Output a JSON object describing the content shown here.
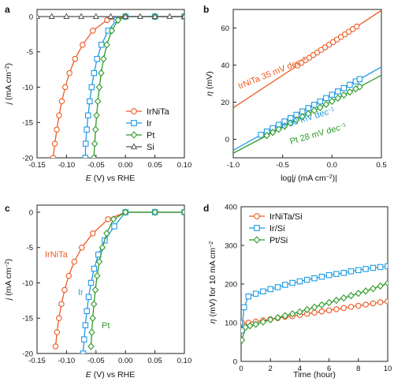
{
  "colors": {
    "IrNiTa": "#ee5a24",
    "Ir": "#1f9be5",
    "Pt": "#2e9a2a",
    "Si": "#444444"
  },
  "chart_data": [
    {
      "panel": "a",
      "type": "line",
      "xlabel": "E (V) vs RHE",
      "ylabel": "j (mA cm−2)",
      "xlim": [
        -0.15,
        0.1
      ],
      "ylim": [
        -20,
        1
      ],
      "xticks": [
        "-0.15",
        "-0.10",
        "-0.05",
        "0.00",
        "0.05",
        "0.10"
      ],
      "yticks": [
        "0",
        "-5",
        "-10",
        "-15",
        "-20"
      ],
      "legend": {
        "placement": "bottom-right",
        "entries": [
          "IrNiTa",
          "Ir",
          "Pt",
          "Si"
        ]
      },
      "series": [
        {
          "name": "IrNiTa",
          "marker": "circle",
          "x": [
            -0.1226,
            -0.1198,
            -0.1165,
            -0.1126,
            -0.108,
            -0.1022,
            -0.095,
            -0.0855,
            -0.0727,
            -0.0552,
            -0.0312,
            0.0,
            0.05,
            0.1
          ],
          "y": [
            -20,
            -18,
            -16,
            -14,
            -12,
            -10,
            -8,
            -6,
            -4,
            -2,
            -0.5,
            0,
            0,
            0
          ]
        },
        {
          "name": "Ir",
          "marker": "square",
          "x": [
            -0.0681,
            -0.0675,
            -0.0656,
            -0.0634,
            -0.0606,
            -0.0574,
            -0.0534,
            -0.0481,
            -0.0407,
            -0.0293,
            -0.0151,
            0.0,
            0.05,
            0.1
          ],
          "y": [
            -20,
            -18,
            -16,
            -14,
            -12,
            -10,
            -8,
            -6,
            -4,
            -2,
            -0.5,
            0,
            0,
            0
          ]
        },
        {
          "name": "Pt",
          "marker": "diamond",
          "x": [
            -0.0536,
            -0.0522,
            -0.0507,
            -0.0489,
            -0.0468,
            -0.0443,
            -0.0412,
            -0.0372,
            -0.0317,
            -0.0232,
            -0.0125,
            0.0,
            0.05,
            0.1
          ],
          "y": [
            -20,
            -18,
            -16,
            -14,
            -12,
            -10,
            -8,
            -6,
            -4,
            -2,
            -0.5,
            0,
            0,
            0
          ]
        },
        {
          "name": "Si",
          "marker": "triangle",
          "x": [
            -0.15,
            -0.125,
            -0.1,
            -0.075,
            -0.05,
            -0.025,
            0.0,
            0.025,
            0.05,
            0.075,
            0.1
          ],
          "y": [
            0,
            0,
            0,
            0,
            0,
            0,
            0,
            0,
            0,
            0,
            0
          ]
        }
      ]
    },
    {
      "panel": "b",
      "type": "scatter",
      "xlabel": "log|j (mA cm−2)|",
      "ylabel": "η (mV)",
      "xlim": [
        -1.0,
        0.5
      ],
      "ylim": [
        -10,
        70
      ],
      "xticks": [
        "-1.0",
        "-0.5",
        "0.0",
        "0.5"
      ],
      "yticks": [
        "0",
        "20",
        "40",
        "60"
      ],
      "series": [
        {
          "name": "IrNiTa",
          "marker": "circle",
          "x": [
            -0.35,
            -0.31,
            -0.27,
            -0.23,
            -0.19,
            -0.15,
            -0.11,
            -0.07,
            -0.03,
            0.01,
            0.05,
            0.09,
            0.13,
            0.17,
            0.21,
            0.25
          ],
          "y": [
            39.8,
            41.2,
            42.6,
            44.0,
            45.4,
            46.8,
            48.2,
            49.6,
            51.0,
            52.4,
            53.8,
            55.2,
            56.6,
            58.0,
            59.4,
            60.8
          ],
          "fit": {
            "slope": 35,
            "intercept": 52.0,
            "xrange": [
              -1.0,
              0.5
            ]
          }
        },
        {
          "name": "Ir",
          "marker": "square",
          "x": [
            -0.72,
            -0.66,
            -0.6,
            -0.54,
            -0.48,
            -0.42,
            -0.36,
            -0.3,
            -0.24,
            -0.18,
            -0.12,
            -0.06,
            0.0,
            0.06,
            0.12,
            0.18,
            0.24,
            0.28
          ],
          "y": [
            2.4,
            4.2,
            6.0,
            7.8,
            9.6,
            11.4,
            13.2,
            15.0,
            16.8,
            18.6,
            20.4,
            22.2,
            24.0,
            25.8,
            27.6,
            29.4,
            31.2,
            32.4
          ],
          "fit": {
            "slope": 30,
            "intercept": 24.0,
            "xrange": [
              -1.0,
              0.5
            ]
          }
        },
        {
          "name": "Pt",
          "marker": "diamond",
          "x": [
            -0.66,
            -0.6,
            -0.54,
            -0.48,
            -0.42,
            -0.36,
            -0.3,
            -0.24,
            -0.18,
            -0.12,
            -0.06,
            0.0,
            0.06,
            0.12,
            0.18,
            0.24,
            0.28
          ],
          "y": [
            2.0,
            3.7,
            5.4,
            7.0,
            8.7,
            10.4,
            12.1,
            13.8,
            15.5,
            17.1,
            18.8,
            20.5,
            22.2,
            23.9,
            25.5,
            27.2,
            28.3
          ],
          "fit": {
            "slope": 28,
            "intercept": 20.5,
            "xrange": [
              -1.0,
              0.5
            ]
          }
        }
      ],
      "annotations": [
        {
          "text": "IrNiTa   35 mV dec−1",
          "series": "IrNiTa"
        },
        {
          "text": "Ir   30 mV dec−1",
          "series": "Ir"
        },
        {
          "text": "Pt   28 mV dec−1",
          "series": "Pt"
        }
      ]
    },
    {
      "panel": "c",
      "type": "line",
      "xlabel": "E (V) vs RHE",
      "ylabel": "j (mA cm−2)",
      "xlim": [
        -0.15,
        0.1
      ],
      "ylim": [
        -20,
        1
      ],
      "xticks": [
        "-0.15",
        "-0.10",
        "-0.05",
        "0.00",
        "0.05",
        "0.10"
      ],
      "yticks": [
        "0",
        "-5",
        "-10",
        "-15",
        "-20"
      ],
      "series": [
        {
          "name": "IrNiTa",
          "marker": "circle",
          "x": [
            -0.1186,
            -0.1161,
            -0.1128,
            -0.1086,
            -0.1032,
            -0.0962,
            -0.0868,
            -0.074,
            -0.0554,
            -0.0295,
            0.0,
            0.05,
            0.1
          ],
          "y": [
            -19,
            -17,
            -15,
            -13,
            -11,
            -9,
            -7,
            -5,
            -3,
            -1,
            0,
            0,
            0
          ]
        },
        {
          "name": "Ir",
          "marker": "square",
          "x": [
            -0.0718,
            -0.0701,
            -0.068,
            -0.0655,
            -0.0624,
            -0.0584,
            -0.0532,
            -0.046,
            -0.0352,
            -0.019,
            0.0,
            0.05,
            0.1
          ],
          "y": [
            -20,
            -18,
            -16,
            -14,
            -12,
            -10,
            -8,
            -6,
            -4,
            -2,
            0,
            0,
            0
          ]
        },
        {
          "name": "Pt",
          "marker": "diamond",
          "x": [
            -0.0584,
            -0.0571,
            -0.0555,
            -0.0535,
            -0.0511,
            -0.0481,
            -0.0443,
            -0.0392,
            -0.0318,
            -0.0204,
            0.0,
            0.05,
            0.1
          ],
          "y": [
            -19,
            -17,
            -15,
            -13,
            -11,
            -9,
            -7,
            -5,
            -3,
            -1,
            0,
            0,
            0
          ]
        }
      ],
      "annotations": [
        {
          "text": "IrNiTa",
          "series": "IrNiTa"
        },
        {
          "text": "Ir",
          "series": "Ir"
        },
        {
          "text": "Pt",
          "series": "Pt"
        }
      ]
    },
    {
      "panel": "d",
      "type": "line",
      "xlabel": "Time (hour)",
      "ylabel": "η (mV) for 10 mA cm−2",
      "xlim": [
        0,
        10
      ],
      "ylim": [
        0,
        400
      ],
      "xticks": [
        "0",
        "2",
        "4",
        "6",
        "8",
        "10"
      ],
      "yticks": [
        "0",
        "100",
        "200",
        "300",
        "400"
      ],
      "legend": {
        "placement": "top-left",
        "entries": [
          "IrNiTa/Si",
          "Ir/Si",
          "Pt/Si"
        ]
      },
      "series": [
        {
          "name": "IrNiTa/Si",
          "marker": "circle",
          "x": [
            0.05,
            0.5,
            1,
            1.5,
            2,
            2.5,
            3,
            3.5,
            4,
            4.5,
            5,
            5.5,
            6,
            6.5,
            7,
            7.5,
            8,
            8.5,
            9,
            9.5,
            10
          ],
          "y": [
            100,
            100,
            103,
            106,
            109,
            112,
            115,
            117,
            120,
            123,
            126,
            129,
            132,
            135,
            138,
            141,
            144,
            147,
            150,
            153,
            155
          ]
        },
        {
          "name": "Ir/Si",
          "marker": "square",
          "x": [
            0.05,
            0.2,
            0.5,
            1,
            1.5,
            2,
            2.5,
            3,
            3.5,
            4,
            4.5,
            5,
            5.5,
            6,
            6.5,
            7,
            7.5,
            8,
            8.5,
            9,
            9.5,
            10
          ],
          "y": [
            80,
            140,
            168,
            175,
            181,
            187,
            192,
            198,
            203,
            207,
            211,
            215,
            219,
            223,
            226,
            229,
            233,
            236,
            239,
            242,
            244,
            246
          ]
        },
        {
          "name": "Pt/Si",
          "marker": "diamond",
          "x": [
            0.05,
            0.3,
            0.6,
            1,
            1.5,
            2,
            2.5,
            3,
            3.5,
            4,
            4.5,
            5,
            5.5,
            6,
            6.5,
            7,
            7.5,
            8,
            8.5,
            9,
            9.5,
            10
          ],
          "y": [
            55,
            88,
            92,
            96,
            102,
            108,
            113,
            118,
            123,
            128,
            134,
            140,
            146,
            152,
            158,
            164,
            170,
            176,
            182,
            188,
            195,
            202
          ]
        }
      ]
    }
  ]
}
